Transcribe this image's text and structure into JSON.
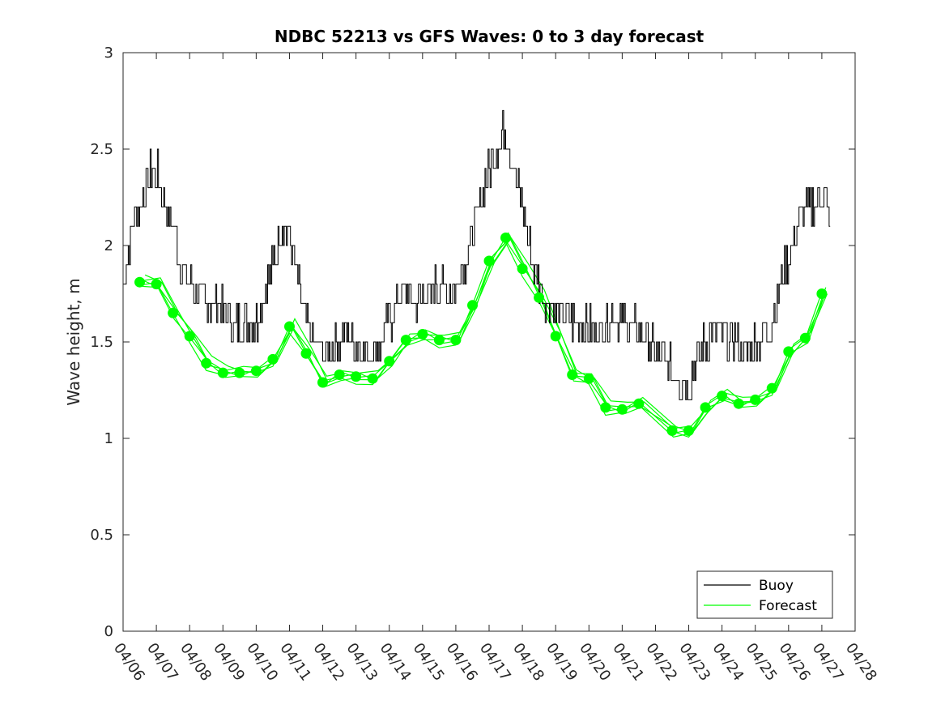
{
  "chart_data": {
    "type": "line",
    "title": "NDBC 52213 vs GFS Waves: 0 to 3 day forecast",
    "xlabel": "",
    "ylabel": "Wave height, m",
    "xlim": [
      "04/06",
      "04/28"
    ],
    "ylim": [
      0,
      3
    ],
    "x_ticks": [
      "04/06",
      "04/07",
      "04/08",
      "04/09",
      "04/10",
      "04/11",
      "04/12",
      "04/13",
      "04/14",
      "04/15",
      "04/16",
      "04/17",
      "04/18",
      "04/19",
      "04/20",
      "04/21",
      "04/22",
      "04/23",
      "04/24",
      "04/25",
      "04/26",
      "04/27",
      "04/28"
    ],
    "y_ticks": [
      "0",
      "0.5",
      "1",
      "1.5",
      "2",
      "2.5",
      "3"
    ],
    "grid": false,
    "legend_position": "bottom-right",
    "colors": {
      "buoy": "#000000",
      "forecast": "#00ff00"
    },
    "series": [
      {
        "name": "Buoy",
        "x": [
          "04/06 00:00",
          "04/06 06:00",
          "04/06 12:00",
          "04/06 18:00",
          "04/07 00:00",
          "04/07 06:00",
          "04/07 12:00",
          "04/07 18:00",
          "04/08 00:00",
          "04/08 06:00",
          "04/08 12:00",
          "04/08 18:00",
          "04/09 00:00",
          "04/09 06:00",
          "04/09 12:00",
          "04/09 18:00",
          "04/10 00:00",
          "04/10 06:00",
          "04/10 12:00",
          "04/10 18:00",
          "04/11 00:00",
          "04/11 06:00",
          "04/11 12:00",
          "04/11 18:00",
          "04/12 00:00",
          "04/12 06:00",
          "04/12 12:00",
          "04/12 18:00",
          "04/13 00:00",
          "04/13 06:00",
          "04/13 12:00",
          "04/13 18:00",
          "04/14 00:00",
          "04/14 06:00",
          "04/14 12:00",
          "04/14 18:00",
          "04/15 00:00",
          "04/15 06:00",
          "04/15 12:00",
          "04/15 18:00",
          "04/16 00:00",
          "04/16 06:00",
          "04/16 12:00",
          "04/16 18:00",
          "04/17 00:00",
          "04/17 06:00",
          "04/17 12:00",
          "04/17 18:00",
          "04/18 00:00",
          "04/18 06:00",
          "04/18 12:00",
          "04/18 18:00",
          "04/19 00:00",
          "04/19 06:00",
          "04/19 12:00",
          "04/19 18:00",
          "04/20 00:00",
          "04/20 06:00",
          "04/20 12:00",
          "04/20 18:00",
          "04/21 00:00",
          "04/21 06:00",
          "04/21 12:00",
          "04/21 18:00",
          "04/22 00:00",
          "04/22 06:00",
          "04/22 12:00",
          "04/22 18:00",
          "04/23 00:00",
          "04/23 06:00",
          "04/23 12:00",
          "04/23 18:00",
          "04/24 00:00",
          "04/24 06:00",
          "04/24 12:00",
          "04/24 18:00",
          "04/25 00:00",
          "04/25 06:00",
          "04/25 12:00",
          "04/25 18:00",
          "04/26 00:00",
          "04/26 06:00",
          "04/26 12:00",
          "04/26 18:00",
          "04/27 00:00",
          "04/27 06:00"
        ],
        "values": [
          1.8,
          2.1,
          2.2,
          2.35,
          2.4,
          2.2,
          2.1,
          1.9,
          1.8,
          1.75,
          1.7,
          1.7,
          1.65,
          1.6,
          1.6,
          1.6,
          1.6,
          1.75,
          1.9,
          2.1,
          2.05,
          1.8,
          1.6,
          1.5,
          1.45,
          1.45,
          1.5,
          1.55,
          1.5,
          1.45,
          1.45,
          1.5,
          1.6,
          1.7,
          1.75,
          1.7,
          1.75,
          1.75,
          1.8,
          1.75,
          1.8,
          1.9,
          2.05,
          2.25,
          2.4,
          2.5,
          2.6,
          2.4,
          2.2,
          1.95,
          1.8,
          1.7,
          1.65,
          1.65,
          1.6,
          1.6,
          1.6,
          1.55,
          1.6,
          1.65,
          1.6,
          1.6,
          1.55,
          1.5,
          1.45,
          1.4,
          1.35,
          1.3,
          1.3,
          1.4,
          1.5,
          1.55,
          1.55,
          1.5,
          1.5,
          1.45,
          1.5,
          1.55,
          1.6,
          1.8,
          1.95,
          2.1,
          2.2,
          2.2,
          2.3,
          2.1
        ]
      },
      {
        "name": "Forecast",
        "x": [
          "04/06 12:00",
          "04/07 00:00",
          "04/07 12:00",
          "04/08 00:00",
          "04/08 12:00",
          "04/09 00:00",
          "04/09 12:00",
          "04/10 00:00",
          "04/10 12:00",
          "04/11 00:00",
          "04/11 12:00",
          "04/12 00:00",
          "04/12 12:00",
          "04/13 00:00",
          "04/13 12:00",
          "04/14 00:00",
          "04/14 12:00",
          "04/15 00:00",
          "04/15 12:00",
          "04/16 00:00",
          "04/16 12:00",
          "04/17 00:00",
          "04/17 12:00",
          "04/18 00:00",
          "04/18 12:00",
          "04/19 00:00",
          "04/19 12:00",
          "04/20 00:00",
          "04/20 12:00",
          "04/21 00:00",
          "04/21 12:00",
          "04/22 12:00",
          "04/23 00:00",
          "04/23 12:00",
          "04/24 00:00",
          "04/24 12:00",
          "04/25 00:00",
          "04/25 12:00",
          "04/26 00:00",
          "04/26 12:00",
          "04/27 00:00"
        ],
        "values": [
          1.81,
          1.8,
          1.65,
          1.53,
          1.39,
          1.34,
          1.34,
          1.35,
          1.41,
          1.58,
          1.44,
          1.29,
          1.33,
          1.32,
          1.31,
          1.4,
          1.51,
          1.54,
          1.51,
          1.51,
          1.69,
          1.92,
          2.04,
          1.88,
          1.73,
          1.53,
          1.33,
          1.31,
          1.16,
          1.15,
          1.18,
          1.04,
          1.04,
          1.16,
          1.22,
          1.18,
          1.2,
          1.26,
          1.45,
          1.52,
          1.75
        ]
      }
    ]
  }
}
